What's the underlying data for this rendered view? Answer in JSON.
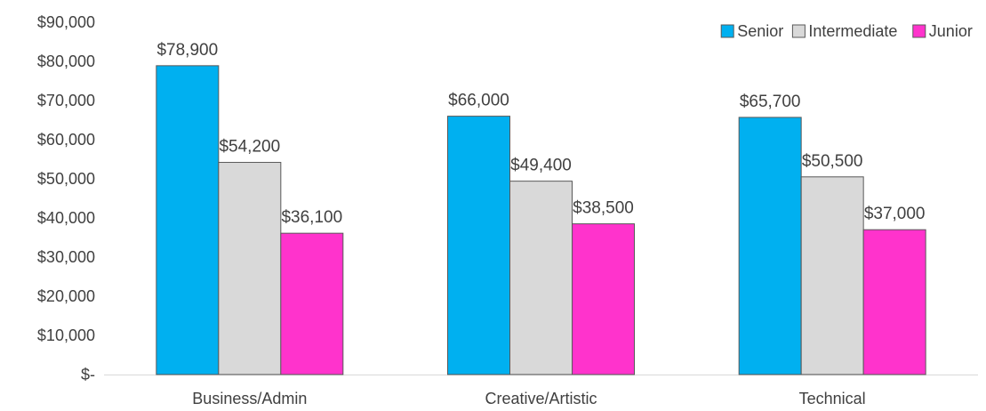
{
  "chart_data": {
    "type": "bar",
    "title": "",
    "xlabel": "",
    "ylabel": "",
    "categories": [
      "Business/Admin",
      "Creative/Artistic",
      "Technical"
    ],
    "series": [
      {
        "name": "Senior",
        "color": "#00B0F0",
        "values": [
          78900,
          66000,
          65700
        ],
        "labels": [
          "$78,900",
          "$66,000",
          "$65,700"
        ]
      },
      {
        "name": "Intermediate",
        "color": "#D9D9D9",
        "values": [
          54200,
          49400,
          50500
        ],
        "labels": [
          "$54,200",
          "$49,400",
          "$50,500"
        ]
      },
      {
        "name": "Junior",
        "color": "#FF33CC",
        "values": [
          36100,
          38500,
          37000
        ],
        "labels": [
          "$36,100",
          "$38,500",
          "$37,000"
        ]
      }
    ],
    "ylim": [
      0,
      90000
    ],
    "y_ticks": [
      0,
      10000,
      20000,
      30000,
      40000,
      50000,
      60000,
      70000,
      80000,
      90000
    ],
    "y_tick_labels": [
      "$-",
      "$10,000",
      "$20,000",
      "$30,000",
      "$40,000",
      "$50,000",
      "$60,000",
      "$70,000",
      "$80,000",
      "$90,000"
    ],
    "grid": false,
    "legend_position": "top-right"
  }
}
